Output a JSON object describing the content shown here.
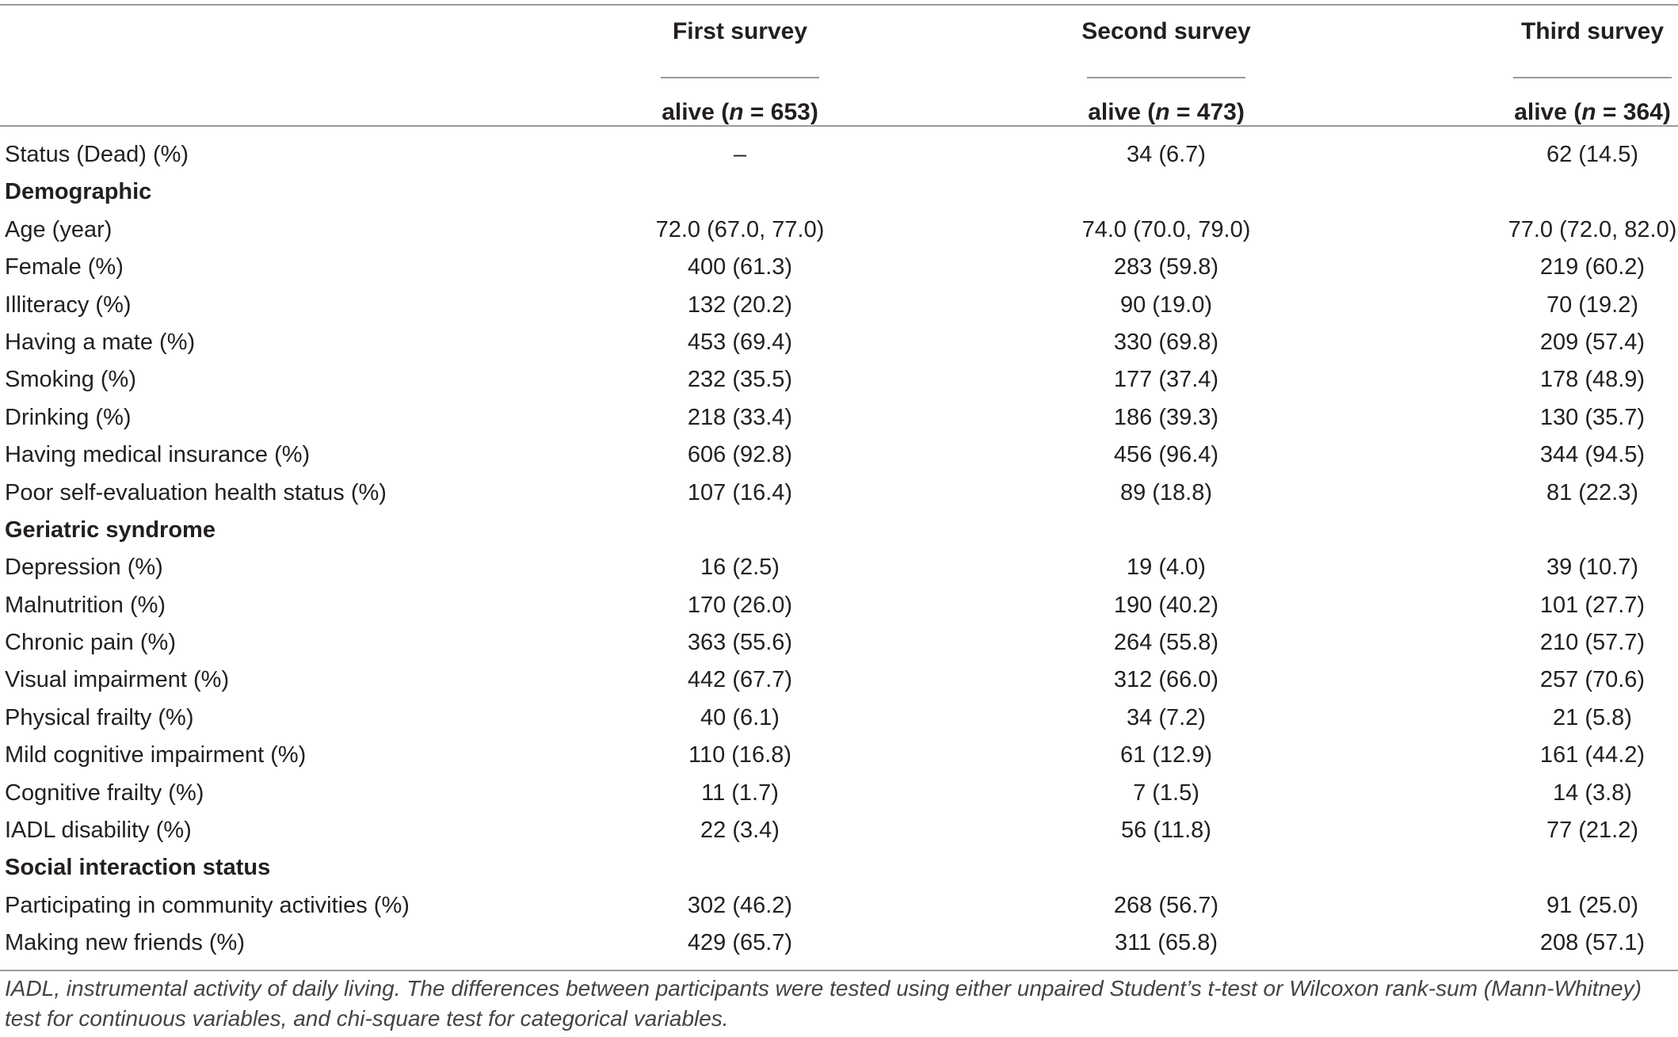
{
  "table": {
    "columns": [
      {
        "survey": "First survey",
        "alive_prefix": "alive (",
        "alive_n": "n",
        "alive_value": " = 653)"
      },
      {
        "survey": "Second survey",
        "alive_prefix": "alive (",
        "alive_n": "n",
        "alive_value": " = 473)"
      },
      {
        "survey": "Third survey",
        "alive_prefix": "alive (",
        "alive_n": "n",
        "alive_value": " = 364)"
      }
    ],
    "rows": [
      {
        "type": "data",
        "label": "Status (Dead) (%)",
        "values": [
          "–",
          "34 (6.7)",
          "62 (14.5)"
        ]
      },
      {
        "type": "section",
        "label": "Demographic",
        "values": [
          "",
          "",
          ""
        ]
      },
      {
        "type": "data",
        "label": "Age (year)",
        "values": [
          "72.0 (67.0, 77.0)",
          "74.0 (70.0, 79.0)",
          "77.0 (72.0, 82.0)"
        ]
      },
      {
        "type": "data",
        "label": "Female (%)",
        "values": [
          "400 (61.3)",
          "283 (59.8)",
          "219 (60.2)"
        ]
      },
      {
        "type": "data",
        "label": "Illiteracy (%)",
        "values": [
          "132 (20.2)",
          "90 (19.0)",
          "70 (19.2)"
        ]
      },
      {
        "type": "data",
        "label": "Having a mate (%)",
        "values": [
          "453 (69.4)",
          "330 (69.8)",
          "209 (57.4)"
        ]
      },
      {
        "type": "data",
        "label": "Smoking (%)",
        "values": [
          "232 (35.5)",
          "177 (37.4)",
          "178 (48.9)"
        ]
      },
      {
        "type": "data",
        "label": "Drinking (%)",
        "values": [
          "218 (33.4)",
          "186 (39.3)",
          "130 (35.7)"
        ]
      },
      {
        "type": "data",
        "label": "Having medical insurance (%)",
        "values": [
          "606 (92.8)",
          "456 (96.4)",
          "344 (94.5)"
        ]
      },
      {
        "type": "data",
        "label": "Poor self-evaluation health status (%)",
        "values": [
          "107 (16.4)",
          "89 (18.8)",
          "81 (22.3)"
        ]
      },
      {
        "type": "section",
        "label": "Geriatric syndrome",
        "values": [
          "",
          "",
          ""
        ]
      },
      {
        "type": "data",
        "label": "Depression (%)",
        "values": [
          "16 (2.5)",
          "19 (4.0)",
          "39 (10.7)"
        ]
      },
      {
        "type": "data",
        "label": "Malnutrition (%)",
        "values": [
          "170 (26.0)",
          "190 (40.2)",
          "101 (27.7)"
        ]
      },
      {
        "type": "data",
        "label": "Chronic pain (%)",
        "values": [
          "363 (55.6)",
          "264 (55.8)",
          "210 (57.7)"
        ]
      },
      {
        "type": "data",
        "label": "Visual impairment (%)",
        "values": [
          "442 (67.7)",
          "312 (66.0)",
          "257 (70.6)"
        ]
      },
      {
        "type": "data",
        "label": "Physical frailty (%)",
        "values": [
          "40 (6.1)",
          "34 (7.2)",
          "21 (5.8)"
        ]
      },
      {
        "type": "data",
        "label": "Mild cognitive impairment (%)",
        "values": [
          "110 (16.8)",
          "61 (12.9)",
          "161 (44.2)"
        ]
      },
      {
        "type": "data",
        "label": "Cognitive frailty (%)",
        "values": [
          "11 (1.7)",
          "7 (1.5)",
          "14 (3.8)"
        ]
      },
      {
        "type": "data",
        "label": "IADL disability (%)",
        "values": [
          "22 (3.4)",
          "56 (11.8)",
          "77 (21.2)"
        ]
      },
      {
        "type": "section",
        "label": "Social interaction status",
        "values": [
          "",
          "",
          ""
        ]
      },
      {
        "type": "data",
        "label": "Participating in community activities (%)",
        "values": [
          "302 (46.2)",
          "268 (56.7)",
          "91 (25.0)"
        ]
      },
      {
        "type": "data",
        "label": "Making new friends (%)",
        "values": [
          "429 (65.7)",
          "311 (65.8)",
          "208 (57.1)"
        ]
      }
    ],
    "footnote": "IADL, instrumental activity of daily living. The differences between participants were tested using either unpaired Student’s t-test or Wilcoxon rank-sum (Mann-Whitney) test for continuous variables, and chi-square test for categorical variables."
  }
}
